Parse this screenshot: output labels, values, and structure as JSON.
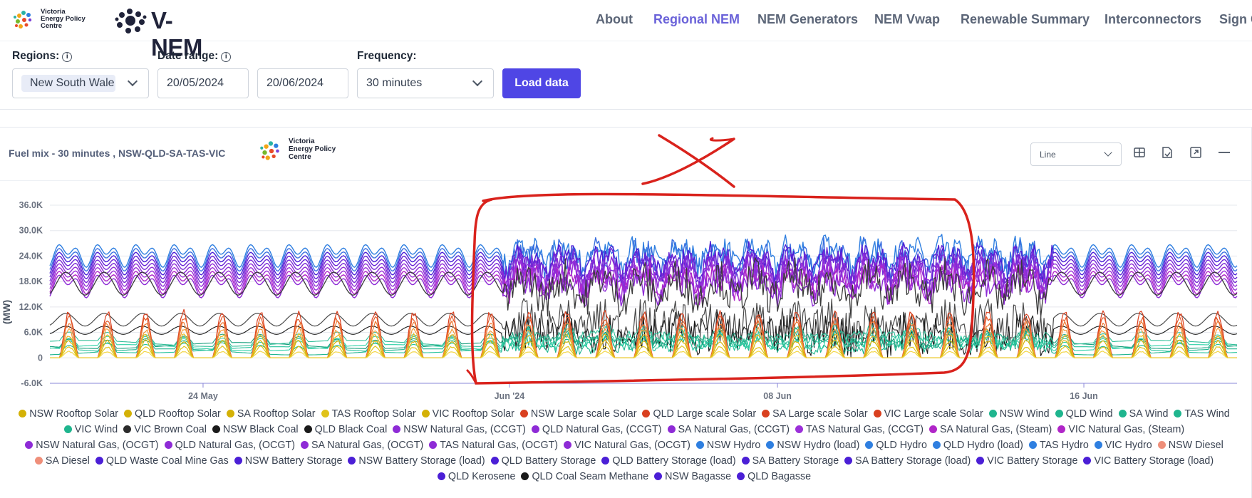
{
  "brand": {
    "vepc_line1": "Victoria",
    "vepc_line2": "Energy Policy",
    "vepc_line3": "Centre",
    "app_name": "V-NEM"
  },
  "nav": [
    {
      "label": "About"
    },
    {
      "label": "Regional NEM",
      "active": true
    },
    {
      "label": "NEM Generators"
    },
    {
      "label": "NEM Vwap"
    },
    {
      "label": "Renewable Summary"
    },
    {
      "label": "Interconnectors"
    },
    {
      "label": "Sign C"
    }
  ],
  "filters": {
    "regions_label": "Regions:",
    "regions_value": "New South Wale",
    "date_range_label": "Date range:",
    "start_date": "20/05/2024",
    "end_date": "20/06/2024",
    "frequency_label": "Frequency:",
    "frequency_value": "30 minutes",
    "load_button": "Load data"
  },
  "panel": {
    "title": "Fuel mix - 30 minutes , NSW-QLD-SA-TAS-VIC",
    "chart_type_value": "Line"
  },
  "chart_data": {
    "type": "line",
    "ylabel": "(MW)",
    "yticks": [
      "36.0K",
      "30.0K",
      "24.0K",
      "18.0K",
      "12.0K",
      "6.0K",
      "0",
      "-6.0K"
    ],
    "ylim": [
      -6000,
      36000
    ],
    "xticks": [
      "24 May",
      "Jun '24",
      "08 Jun",
      "16 Jun"
    ],
    "x_range": [
      "2024-05-20",
      "2024-06-20"
    ],
    "frequency": "30 minutes",
    "grid": true,
    "legend_position": "bottom",
    "note": "Stacked-looking fuel mix with daily cycle; totals peak ~30K MW, solar peaks daily up to ~12K MW"
  },
  "legend": [
    {
      "label": "NSW Rooftop Solar",
      "color": "#d4b106"
    },
    {
      "label": "QLD Rooftop Solar",
      "color": "#d4b106"
    },
    {
      "label": "SA Rooftop Solar",
      "color": "#d4b106"
    },
    {
      "label": "TAS Rooftop Solar",
      "color": "#e0c31a"
    },
    {
      "label": "VIC Rooftop Solar",
      "color": "#d4b106"
    },
    {
      "label": "NSW Large scale Solar",
      "color": "#d9401f"
    },
    {
      "label": "QLD Large scale Solar",
      "color": "#d9401f"
    },
    {
      "label": "SA Large scale Solar",
      "color": "#d9401f"
    },
    {
      "label": "VIC Large scale Solar",
      "color": "#d9401f"
    },
    {
      "label": "NSW Wind",
      "color": "#1fb58e"
    },
    {
      "label": "QLD Wind",
      "color": "#1fb58e"
    },
    {
      "label": "SA Wind",
      "color": "#1fb58e"
    },
    {
      "label": "TAS Wind",
      "color": "#1fb58e"
    },
    {
      "label": "VIC Wind",
      "color": "#1fb58e"
    },
    {
      "label": "VIC Brown Coal",
      "color": "#2b2b2b"
    },
    {
      "label": "NSW Black Coal",
      "color": "#1a1a1a"
    },
    {
      "label": "QLD Black Coal",
      "color": "#1a1a1a"
    },
    {
      "label": "NSW Natural Gas, (CCGT)",
      "color": "#8e2bd6"
    },
    {
      "label": "QLD Natural Gas, (CCGT)",
      "color": "#8e2bd6"
    },
    {
      "label": "SA Natural Gas, (CCGT)",
      "color": "#8e2bd6"
    },
    {
      "label": "TAS Natural Gas, (CCGT)",
      "color": "#9b30d9"
    },
    {
      "label": "SA Natural Gas, (Steam)",
      "color": "#b026c8"
    },
    {
      "label": "VIC Natural Gas, (Steam)",
      "color": "#b026c8"
    },
    {
      "label": "NSW Natural Gas, (OCGT)",
      "color": "#8e2bd6"
    },
    {
      "label": "QLD Natural Gas, (OCGT)",
      "color": "#8e2bd6"
    },
    {
      "label": "SA Natural Gas, (OCGT)",
      "color": "#8e2bd6"
    },
    {
      "label": "TAS Natural Gas, (OCGT)",
      "color": "#8e2bd6"
    },
    {
      "label": "VIC Natural Gas, (OCGT)",
      "color": "#8e2bd6"
    },
    {
      "label": "NSW Hydro",
      "color": "#2f7fe0"
    },
    {
      "label": "NSW Hydro (load)",
      "color": "#2f7fe0"
    },
    {
      "label": "QLD Hydro",
      "color": "#2f7fe0"
    },
    {
      "label": "QLD Hydro (load)",
      "color": "#2f7fe0"
    },
    {
      "label": "TAS Hydro",
      "color": "#2f7fe0"
    },
    {
      "label": "VIC Hydro",
      "color": "#2f7fe0"
    },
    {
      "label": "NSW Diesel",
      "color": "#ef8f7a"
    },
    {
      "label": "SA Diesel",
      "color": "#ef8f7a"
    },
    {
      "label": "QLD Waste Coal Mine Gas",
      "color": "#4b1fd6"
    },
    {
      "label": "NSW Battery Storage",
      "color": "#4b1fd6"
    },
    {
      "label": "NSW Battery Storage (load)",
      "color": "#4b1fd6"
    },
    {
      "label": "QLD Battery Storage",
      "color": "#4b1fd6"
    },
    {
      "label": "QLD Battery Storage (load)",
      "color": "#4b1fd6"
    },
    {
      "label": "SA Battery Storage",
      "color": "#4b1fd6"
    },
    {
      "label": "SA Battery Storage (load)",
      "color": "#4b1fd6"
    },
    {
      "label": "VIC Battery Storage",
      "color": "#4b1fd6"
    },
    {
      "label": "VIC Battery Storage (load)",
      "color": "#4b1fd6"
    },
    {
      "label": "QLD Kerosene",
      "color": "#4b1fd6"
    },
    {
      "label": "QLD Coal Seam Methane",
      "color": "#1a1a1a"
    },
    {
      "label": "NSW Bagasse",
      "color": "#4b1fd6"
    },
    {
      "label": "QLD Bagasse",
      "color": "#4b1fd6"
    }
  ]
}
